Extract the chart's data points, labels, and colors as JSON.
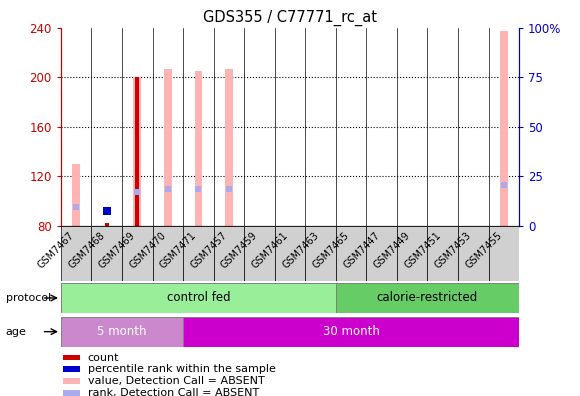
{
  "title": "GDS355 / C77771_rc_at",
  "samples": [
    "GSM7467",
    "GSM7468",
    "GSM7469",
    "GSM7470",
    "GSM7471",
    "GSM7457",
    "GSM7459",
    "GSM7461",
    "GSM7463",
    "GSM7465",
    "GSM7447",
    "GSM7449",
    "GSM7451",
    "GSM7453",
    "GSM7455"
  ],
  "ylim_left": [
    80,
    240
  ],
  "ylim_right": [
    0,
    100
  ],
  "yticks_left": [
    80,
    120,
    160,
    200,
    240
  ],
  "yticks_right": [
    0,
    25,
    50,
    75,
    100
  ],
  "pink_bars": {
    "GSM7467": 130,
    "GSM7469": 200,
    "GSM7470": 207,
    "GSM7471": 205,
    "GSM7457": 207,
    "GSM7455": 237
  },
  "lightblue_marks": {
    "GSM7467": 95,
    "GSM7469": 107,
    "GSM7470": 110,
    "GSM7471": 110,
    "GSM7457": 110,
    "GSM7455": 113
  },
  "red_bars": {
    "GSM7469": 200,
    "GSM7468": 82
  },
  "blue_marks": {
    "GSM7468": 92
  },
  "protocol_groups": [
    {
      "label": "control fed",
      "start": 0,
      "end": 9,
      "color": "#99ee99"
    },
    {
      "label": "calorie-restricted",
      "start": 9,
      "end": 15,
      "color": "#66cc66"
    }
  ],
  "age_groups": [
    {
      "label": "5 month",
      "start": 0,
      "end": 4,
      "color": "#cc88cc"
    },
    {
      "label": "30 month",
      "start": 4,
      "end": 15,
      "color": "#cc00cc"
    }
  ],
  "left_color": "#cc0000",
  "right_color": "#0000cc",
  "pink_color": "#ffb3b3",
  "lightblue_color": "#aaaaee",
  "red_color": "#cc0000",
  "blue_color": "#0000cc",
  "legend_items": [
    {
      "label": "count",
      "color": "#cc0000"
    },
    {
      "label": "percentile rank within the sample",
      "color": "#0000cc"
    },
    {
      "label": "value, Detection Call = ABSENT",
      "color": "#ffb3b3"
    },
    {
      "label": "rank, Detection Call = ABSENT",
      "color": "#aaaaee"
    }
  ]
}
